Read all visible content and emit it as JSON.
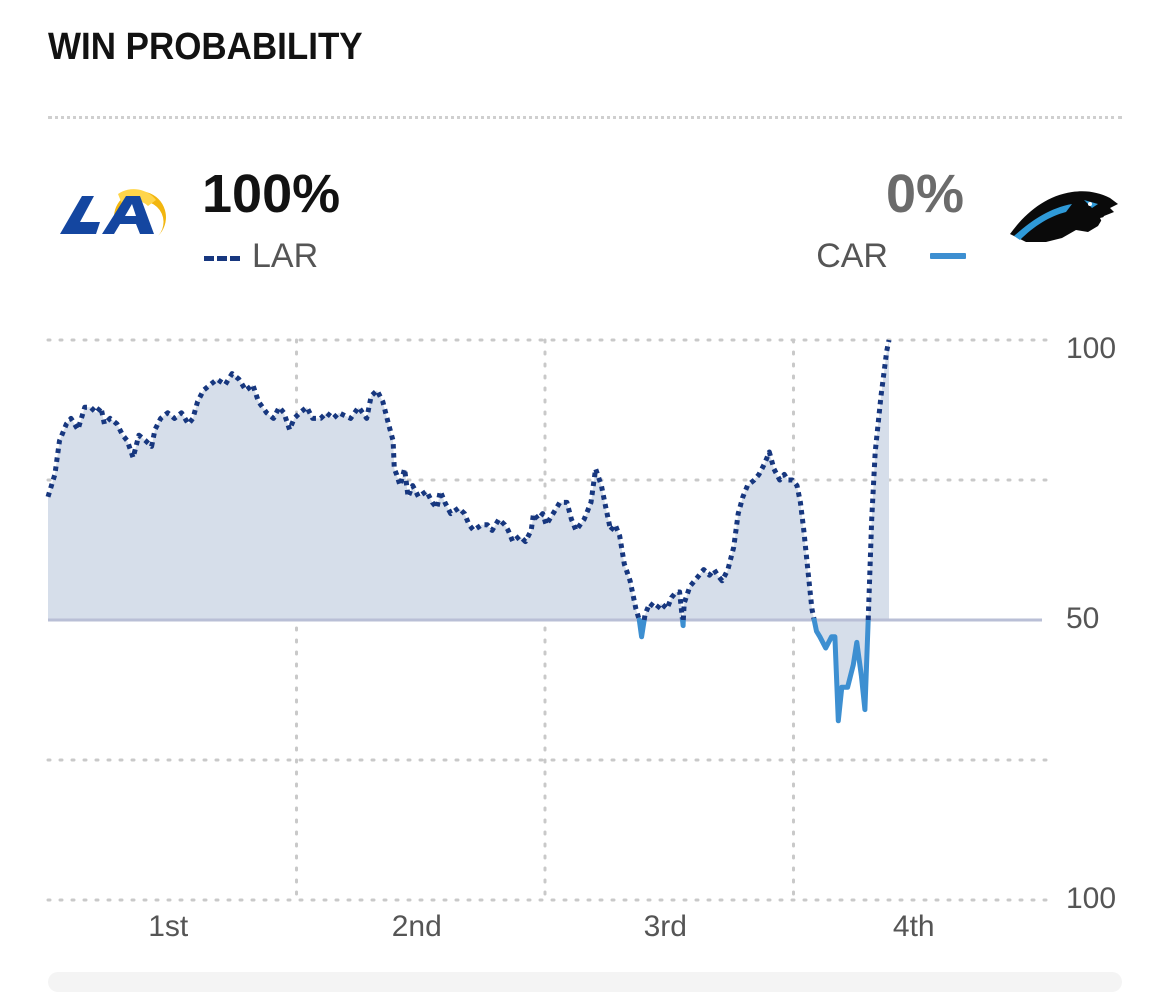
{
  "header": {
    "title": "WIN PROBABILITY"
  },
  "teams": {
    "home": {
      "abbr": "LAR",
      "win_pct": "100%",
      "line_style": "dotted",
      "color": "#17377f",
      "logo_icon": "rams-logo-icon"
    },
    "away": {
      "abbr": "CAR",
      "win_pct": "0%",
      "line_style": "solid",
      "color": "#3d8fd1",
      "logo_icon": "panthers-logo-icon"
    }
  },
  "colors": {
    "fill": "#d6deea",
    "midline": "#b9bfd6",
    "grid": "#c9c9c9",
    "axis_text": "#555555"
  },
  "chart_data": {
    "type": "line",
    "title": "WIN PROBABILITY",
    "xlabel": "",
    "ylabel": "",
    "x_categories": [
      "1st",
      "2nd",
      "3rd",
      "4th"
    ],
    "y_tick_labels": [
      "100",
      "50",
      "100"
    ],
    "ylim": [
      0,
      100
    ],
    "grid": true,
    "legend": "top",
    "series": [
      {
        "name": "LAR",
        "values": [
          [
            0.0,
            72
          ],
          [
            0.69,
            76
          ],
          [
            1.16,
            82
          ],
          [
            1.85,
            85
          ],
          [
            2.31,
            86
          ],
          [
            3.01,
            84
          ],
          [
            3.7,
            88
          ],
          [
            4.28,
            88
          ],
          [
            4.86,
            87
          ],
          [
            5.32,
            88
          ],
          [
            5.67,
            85
          ],
          [
            6.25,
            86
          ],
          [
            6.94,
            85
          ],
          [
            7.52,
            83
          ],
          [
            7.98,
            82
          ],
          [
            8.56,
            79
          ],
          [
            9.14,
            83
          ],
          [
            9.83,
            82
          ],
          [
            10.42,
            81
          ],
          [
            10.76,
            84
          ],
          [
            11.34,
            86
          ],
          [
            12.04,
            87
          ],
          [
            12.73,
            86
          ],
          [
            13.43,
            87
          ],
          [
            14.12,
            85
          ],
          [
            14.58,
            86
          ],
          [
            15.05,
            89
          ],
          [
            15.63,
            91
          ],
          [
            16.32,
            92
          ],
          [
            17.01,
            93
          ],
          [
            17.82,
            92
          ],
          [
            18.52,
            94
          ],
          [
            19.21,
            93
          ],
          [
            19.91,
            91
          ],
          [
            20.6,
            92
          ],
          [
            21.18,
            89
          ],
          [
            21.99,
            87
          ],
          [
            22.69,
            86
          ],
          [
            23.26,
            88
          ],
          [
            23.73,
            87
          ],
          [
            24.31,
            84
          ],
          [
            24.77,
            86
          ],
          [
            25.35,
            87
          ],
          [
            26.04,
            88
          ],
          [
            26.62,
            86
          ],
          [
            27.43,
            86
          ],
          [
            28.01,
            87
          ],
          [
            28.7,
            86
          ],
          [
            29.28,
            87
          ],
          [
            30.44,
            86
          ],
          [
            31.25,
            88
          ],
          [
            32.06,
            86
          ],
          [
            32.52,
            90
          ],
          [
            33.1,
            91
          ],
          [
            33.68,
            89
          ],
          [
            34.26,
            85
          ],
          [
            34.72,
            82
          ],
          [
            34.84,
            77
          ],
          [
            35.07,
            76
          ],
          [
            35.42,
            74
          ],
          [
            35.88,
            77
          ],
          [
            36.23,
            72
          ],
          [
            36.69,
            74
          ],
          [
            37.27,
            72
          ],
          [
            38.08,
            73
          ],
          [
            38.66,
            71
          ],
          [
            39.12,
            70
          ],
          [
            39.47,
            73
          ],
          [
            39.93,
            71
          ],
          [
            40.51,
            69
          ],
          [
            41.32,
            70
          ],
          [
            41.9,
            69
          ],
          [
            42.36,
            67
          ],
          [
            42.82,
            66
          ],
          [
            43.63,
            67
          ],
          [
            44.21,
            67
          ],
          [
            44.68,
            66
          ],
          [
            45.37,
            68
          ],
          [
            45.95,
            67
          ],
          [
            46.3,
            66
          ],
          [
            46.76,
            64
          ],
          [
            47.45,
            65
          ],
          [
            48.03,
            64
          ],
          [
            48.61,
            66
          ],
          [
            48.84,
            69
          ],
          [
            49.31,
            68
          ],
          [
            49.77,
            69
          ],
          [
            50.12,
            67
          ],
          [
            50.81,
            69
          ],
          [
            51.5,
            71
          ],
          [
            52.2,
            71
          ],
          [
            52.66,
            68
          ],
          [
            53.12,
            66
          ],
          [
            53.94,
            68
          ],
          [
            54.63,
            71
          ],
          [
            55.09,
            77
          ],
          [
            55.67,
            74
          ],
          [
            56.13,
            70
          ],
          [
            56.6,
            66
          ],
          [
            57.06,
            67
          ],
          [
            57.52,
            65
          ],
          [
            57.98,
            60
          ],
          [
            58.56,
            57
          ],
          [
            59.14,
            52
          ],
          [
            59.49,
            50
          ],
          [
            59.72,
            47
          ],
          [
            60.07,
            51
          ],
          [
            60.53,
            53
          ],
          [
            61.23,
            52
          ],
          [
            61.69,
            53
          ],
          [
            62.27,
            52
          ],
          [
            62.73,
            54
          ],
          [
            63.19,
            55
          ],
          [
            63.54,
            55
          ],
          [
            63.89,
            49
          ],
          [
            64.0,
            53
          ],
          [
            64.58,
            56
          ],
          [
            65.05,
            57
          ],
          [
            65.51,
            58
          ],
          [
            65.97,
            59
          ],
          [
            66.55,
            58
          ],
          [
            67.01,
            59
          ],
          [
            67.36,
            58
          ],
          [
            67.82,
            57
          ],
          [
            68.4,
            59
          ],
          [
            68.98,
            63
          ],
          [
            69.44,
            69
          ],
          [
            69.91,
            72
          ],
          [
            70.37,
            74
          ],
          [
            71.06,
            75
          ],
          [
            71.53,
            76
          ],
          [
            72.11,
            78
          ],
          [
            72.57,
            80
          ],
          [
            73.03,
            77
          ],
          [
            73.61,
            75
          ],
          [
            74.07,
            76
          ],
          [
            74.42,
            75
          ],
          [
            74.88,
            75
          ],
          [
            75.35,
            74
          ],
          [
            75.69,
            71
          ],
          [
            76.04,
            66
          ],
          [
            76.5,
            58
          ],
          [
            76.85,
            52
          ],
          [
            77.08,
            50
          ],
          [
            77.31,
            48
          ],
          [
            77.66,
            47
          ],
          [
            78.24,
            45
          ],
          [
            78.82,
            47
          ],
          [
            79.17,
            47
          ],
          [
            79.51,
            32
          ],
          [
            79.86,
            38
          ],
          [
            80.44,
            38
          ],
          [
            81.02,
            42
          ],
          [
            81.37,
            46
          ],
          [
            81.83,
            40
          ],
          [
            82.18,
            34
          ],
          [
            82.52,
            50
          ],
          [
            82.87,
            68
          ],
          [
            83.22,
            80
          ],
          [
            83.8,
            90
          ],
          [
            84.38,
            98
          ],
          [
            84.61,
            100
          ]
        ]
      }
    ]
  }
}
